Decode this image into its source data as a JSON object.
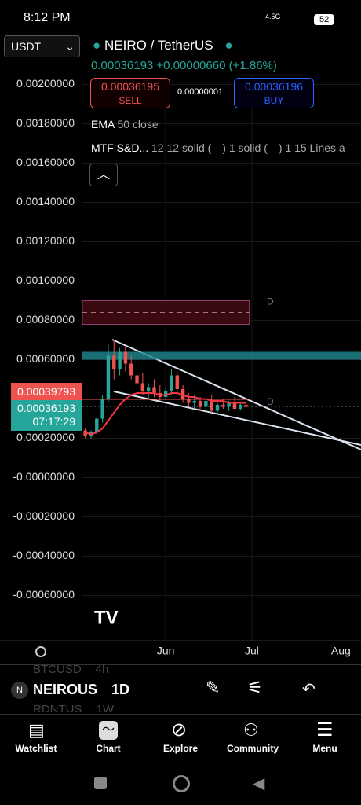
{
  "status_bar": {
    "time": "8:12 PM",
    "network": "4.5G",
    "battery": "52"
  },
  "header": {
    "quote_currency": "USDT",
    "symbol": "NEIRO / TetherUS",
    "last_price": "0.00036193",
    "change": "+0.00000660 (+1.86%)",
    "sell_price": "0.00036195",
    "sell_label": "SELL",
    "spread": "0.00000001",
    "buy_price": "0.00036196",
    "buy_label": "BUY"
  },
  "indicators": [
    {
      "name": "EMA",
      "params": "50 close"
    },
    {
      "name": "MTF S&D...",
      "params": "12 12 solid (—) 1 solid (—) 1 15 Lines a"
    }
  ],
  "chart_data": {
    "type": "candlestick",
    "x": [
      3,
      5,
      7,
      9,
      11,
      13,
      15,
      17,
      19,
      21,
      23,
      25,
      27,
      29,
      31,
      33,
      35,
      37,
      39,
      41,
      43,
      45,
      47,
      49,
      51,
      53,
      55,
      57,
      59
    ],
    "open": [
      0.00024,
      0.00021,
      0.00023,
      0.0003,
      0.0004,
      0.00062,
      0.00055,
      0.00064,
      0.00058,
      0.00052,
      0.00048,
      0.00044,
      0.00046,
      0.00043,
      0.00041,
      0.00044,
      0.00052,
      0.00045,
      0.0004,
      0.00038,
      0.00039,
      0.00036,
      0.00039,
      0.00034,
      0.00037,
      0.00036,
      0.00038,
      0.00035,
      0.00037
    ],
    "high": [
      0.00025,
      0.00024,
      0.00031,
      0.00042,
      0.00068,
      0.0007,
      0.00066,
      0.00067,
      0.00062,
      0.00056,
      0.00053,
      0.00048,
      0.0005,
      0.00047,
      0.00046,
      0.00055,
      0.00054,
      0.00047,
      0.00043,
      0.00042,
      0.00041,
      0.0004,
      0.00042,
      0.00038,
      0.0004,
      0.00039,
      0.00041,
      0.00038,
      0.00038
    ],
    "low": [
      0.0002,
      0.0002,
      0.00022,
      0.00028,
      0.00038,
      0.0005,
      0.00052,
      0.00054,
      0.0005,
      0.00046,
      0.00042,
      0.0004,
      0.00041,
      0.00039,
      0.0004,
      0.00042,
      0.00043,
      0.00038,
      0.00036,
      0.00035,
      0.00034,
      0.00034,
      0.00033,
      0.00033,
      0.00035,
      0.00034,
      0.00035,
      0.00034,
      0.00035
    ],
    "close": [
      0.00021,
      0.00023,
      0.0003,
      0.0004,
      0.00062,
      0.00055,
      0.00064,
      0.00058,
      0.00052,
      0.00048,
      0.00044,
      0.00046,
      0.00043,
      0.00041,
      0.00044,
      0.00052,
      0.00045,
      0.0004,
      0.00038,
      0.00039,
      0.00036,
      0.00039,
      0.00034,
      0.00037,
      0.00036,
      0.00038,
      0.00035,
      0.00037,
      0.00036
    ],
    "ema": [
      0.00023,
      0.00022,
      0.00023,
      0.00025,
      0.00029,
      0.00033,
      0.00037,
      0.0004,
      0.00042,
      0.00043,
      0.00043,
      0.00043,
      0.00043,
      0.00042,
      0.00042,
      0.00043,
      0.00043,
      0.00042,
      0.00041,
      0.00041,
      0.0004,
      0.0004,
      0.00039,
      0.00039,
      0.00039,
      0.00038,
      0.00038,
      0.00038,
      0.00038
    ],
    "up_color": "#26a69a",
    "down_color": "#ef5350",
    "ema_color": "#f23645",
    "supply_zone": [
      0.00078,
      0.0009
    ],
    "demand_band": [
      0.0006,
      0.00064
    ],
    "zone_label": "D",
    "xlim": [
      2,
      99
    ],
    "ylim": [
      -0.00081,
      0.00205
    ],
    "xticks": [
      {
        "value": 31,
        "label": "Jun"
      },
      {
        "value": 61,
        "label": "Jul"
      },
      {
        "value": 92,
        "label": "Aug"
      }
    ],
    "yticks": [
      {
        "value": 0.002,
        "label": "0.00200000"
      },
      {
        "value": 0.0018,
        "label": "0.00180000"
      },
      {
        "value": 0.0016,
        "label": "0.00160000"
      },
      {
        "value": 0.0014,
        "label": "0.00140000"
      },
      {
        "value": 0.0012,
        "label": "0.00120000"
      },
      {
        "value": 0.001,
        "label": "0.00100000"
      },
      {
        "value": 0.0008,
        "label": "0.00080000"
      },
      {
        "value": 0.0006,
        "label": "0.00060000"
      },
      {
        "value": 0.0002,
        "label": "0.00020000"
      },
      {
        "value": 0,
        "label": "-0.00000000"
      },
      {
        "value": -0.0002,
        "label": "-0.00020000"
      },
      {
        "value": -0.0004,
        "label": "-0.00040000"
      },
      {
        "value": -0.0006,
        "label": "-0.00060000"
      }
    ],
    "marker_price": {
      "value": 0.00039793,
      "label": "0.00039793"
    },
    "current_price": {
      "value": 0.00036193,
      "label": "0.00036193"
    },
    "countdown": "07:17:29"
  },
  "symbol_bar": {
    "prev_symbol": "BTCUSD",
    "prev_interval": "4h",
    "symbol": "NEIROUS",
    "interval": "1D",
    "next_symbol": "RDNTUS",
    "next_interval": "1W"
  },
  "nav": [
    "Watchlist",
    "Chart",
    "Explore",
    "Community",
    "Menu"
  ]
}
